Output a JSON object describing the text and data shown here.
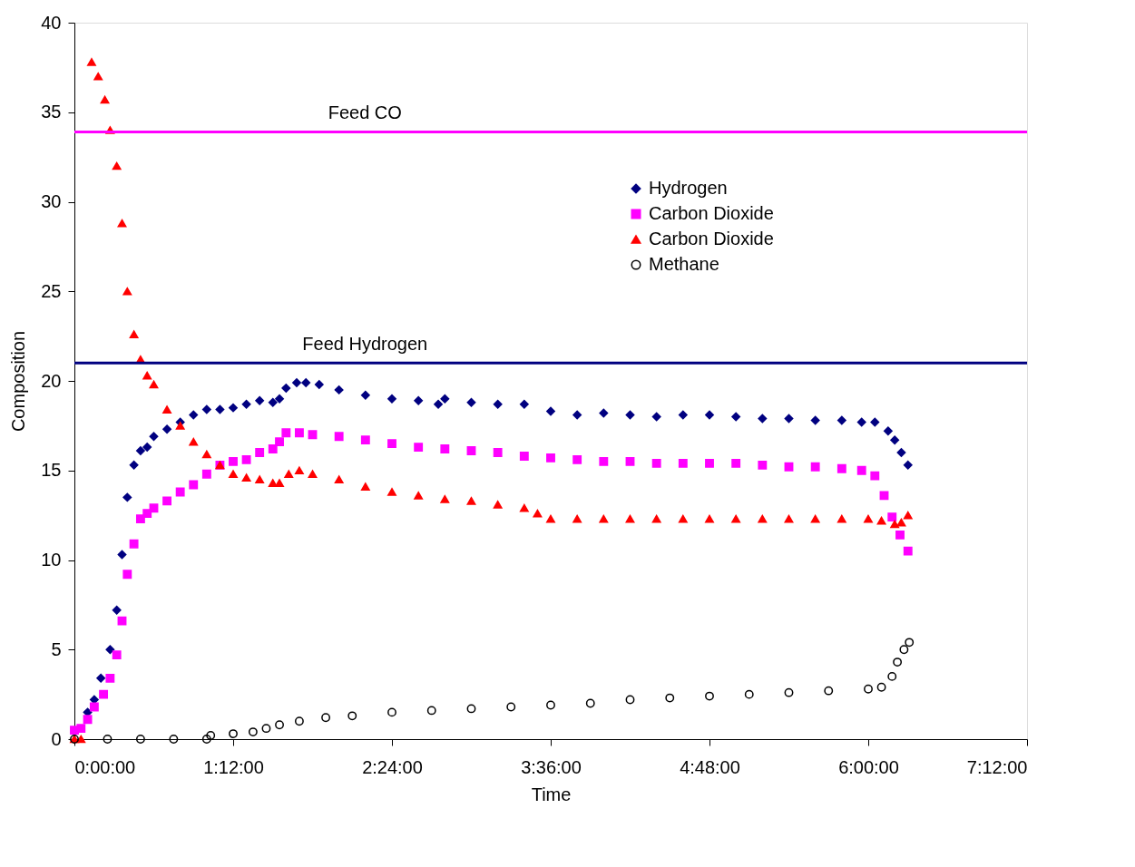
{
  "chart_data": {
    "type": "scatter",
    "xlabel": "Time",
    "ylabel": "Composition",
    "xlim": [
      0,
      7.2
    ],
    "ylim": [
      0,
      40
    ],
    "xticks": [
      {
        "value": 0,
        "label": "0:00:00"
      },
      {
        "value": 1.2,
        "label": "1:12:00"
      },
      {
        "value": 2.4,
        "label": "2:24:00"
      },
      {
        "value": 3.6,
        "label": "3:36:00"
      },
      {
        "value": 4.8,
        "label": "4:48:00"
      },
      {
        "value": 6.0,
        "label": "6:00:00"
      },
      {
        "value": 7.2,
        "label": "7:12:00"
      }
    ],
    "yticks": [
      0,
      5,
      10,
      15,
      20,
      25,
      30,
      35,
      40
    ],
    "grid": false,
    "legend": "top right",
    "ref_lines": [
      {
        "axis": "y",
        "value": 33.9,
        "label": "Feed CO",
        "color": "#ff00ff"
      },
      {
        "axis": "y",
        "value": 21.0,
        "label": "Feed Hydrogen",
        "color": "#000080"
      }
    ],
    "series": [
      {
        "name": "Hydrogen",
        "color": "#000080",
        "marker": "diamond",
        "x": [
          0.1,
          0.15,
          0.2,
          0.27,
          0.32,
          0.36,
          0.4,
          0.45,
          0.5,
          0.55,
          0.6,
          0.7,
          0.8,
          0.9,
          1.0,
          1.1,
          1.2,
          1.3,
          1.4,
          1.5,
          1.55,
          1.6,
          1.68,
          1.75,
          1.85,
          2.0,
          2.2,
          2.4,
          2.6,
          2.75,
          2.8,
          3.0,
          3.2,
          3.4,
          3.6,
          3.8,
          4.0,
          4.2,
          4.4,
          4.6,
          4.8,
          5.0,
          5.2,
          5.4,
          5.6,
          5.8,
          5.95,
          6.05,
          6.15,
          6.2,
          6.25,
          6.3
        ],
        "values": [
          1.5,
          2.2,
          3.4,
          5.0,
          7.2,
          10.3,
          13.5,
          15.3,
          16.1,
          16.3,
          16.9,
          17.3,
          17.7,
          18.1,
          18.4,
          18.4,
          18.5,
          18.7,
          18.9,
          18.8,
          19.0,
          19.6,
          19.9,
          19.9,
          19.8,
          19.5,
          19.2,
          19.0,
          18.9,
          18.7,
          19.0,
          18.8,
          18.7,
          18.7,
          18.3,
          18.1,
          18.2,
          18.1,
          18.0,
          18.1,
          18.1,
          18.0,
          17.9,
          17.9,
          17.8,
          17.8,
          17.7,
          17.7,
          17.2,
          16.7,
          16.0,
          15.3
        ]
      },
      {
        "name": "Carbon Dioxide",
        "color": "#ff00ff",
        "marker": "square",
        "x": [
          0,
          0.05,
          0.1,
          0.15,
          0.22,
          0.27,
          0.32,
          0.36,
          0.4,
          0.45,
          0.5,
          0.55,
          0.6,
          0.7,
          0.8,
          0.9,
          1.0,
          1.1,
          1.2,
          1.3,
          1.4,
          1.5,
          1.55,
          1.6,
          1.7,
          1.8,
          2.0,
          2.2,
          2.4,
          2.6,
          2.8,
          3.0,
          3.2,
          3.4,
          3.6,
          3.8,
          4.0,
          4.2,
          4.4,
          4.6,
          4.8,
          5.0,
          5.2,
          5.4,
          5.6,
          5.8,
          5.95,
          6.05,
          6.12,
          6.18,
          6.24,
          6.3
        ],
        "values": [
          0.5,
          0.6,
          1.1,
          1.8,
          2.5,
          3.4,
          4.7,
          6.6,
          9.2,
          10.9,
          12.3,
          12.6,
          12.9,
          13.3,
          13.8,
          14.2,
          14.8,
          15.3,
          15.5,
          15.6,
          16.0,
          16.2,
          16.6,
          17.1,
          17.1,
          17.0,
          16.9,
          16.7,
          16.5,
          16.3,
          16.2,
          16.1,
          16.0,
          15.8,
          15.7,
          15.6,
          15.5,
          15.5,
          15.4,
          15.4,
          15.4,
          15.4,
          15.3,
          15.2,
          15.2,
          15.1,
          15.0,
          14.7,
          13.6,
          12.4,
          11.4,
          10.5
        ]
      },
      {
        "name": "Carbon Dioxide",
        "color": "#ff0000",
        "marker": "triangle",
        "x": [
          0,
          0.05,
          0.13,
          0.18,
          0.23,
          0.27,
          0.32,
          0.36,
          0.4,
          0.45,
          0.5,
          0.55,
          0.6,
          0.7,
          0.8,
          0.9,
          1.0,
          1.1,
          1.2,
          1.3,
          1.4,
          1.5,
          1.55,
          1.62,
          1.7,
          1.8,
          2.0,
          2.2,
          2.4,
          2.6,
          2.8,
          3.0,
          3.2,
          3.4,
          3.5,
          3.6,
          3.8,
          4.0,
          4.2,
          4.4,
          4.6,
          4.8,
          5.0,
          5.2,
          5.4,
          5.6,
          5.8,
          6.0,
          6.1,
          6.2,
          6.25,
          6.3
        ],
        "values": [
          0,
          0,
          37.8,
          37.0,
          35.7,
          34.0,
          32.0,
          28.8,
          25.0,
          22.6,
          21.2,
          20.3,
          19.8,
          18.4,
          17.5,
          16.6,
          15.9,
          15.3,
          14.8,
          14.6,
          14.5,
          14.3,
          14.3,
          14.8,
          15.0,
          14.8,
          14.5,
          14.1,
          13.8,
          13.6,
          13.4,
          13.3,
          13.1,
          12.9,
          12.6,
          12.3,
          12.3,
          12.3,
          12.3,
          12.3,
          12.3,
          12.3,
          12.3,
          12.3,
          12.3,
          12.3,
          12.3,
          12.3,
          12.2,
          12.0,
          12.1,
          12.5
        ]
      },
      {
        "name": "Methane",
        "color": "#000000",
        "marker": "circle",
        "x": [
          0,
          0.25,
          0.5,
          0.75,
          1.0,
          1.03,
          1.2,
          1.35,
          1.45,
          1.55,
          1.7,
          1.9,
          2.1,
          2.4,
          2.7,
          3.0,
          3.3,
          3.6,
          3.9,
          4.2,
          4.5,
          4.8,
          5.1,
          5.4,
          5.7,
          6.0,
          6.1,
          6.18,
          6.22,
          6.27,
          6.31
        ],
        "values": [
          0,
          0,
          0,
          0,
          0,
          0.2,
          0.3,
          0.4,
          0.6,
          0.8,
          1.0,
          1.2,
          1.3,
          1.5,
          1.6,
          1.7,
          1.8,
          1.9,
          2.0,
          2.2,
          2.3,
          2.4,
          2.5,
          2.6,
          2.7,
          2.8,
          2.9,
          3.5,
          4.3,
          5.0,
          5.4
        ]
      }
    ]
  }
}
